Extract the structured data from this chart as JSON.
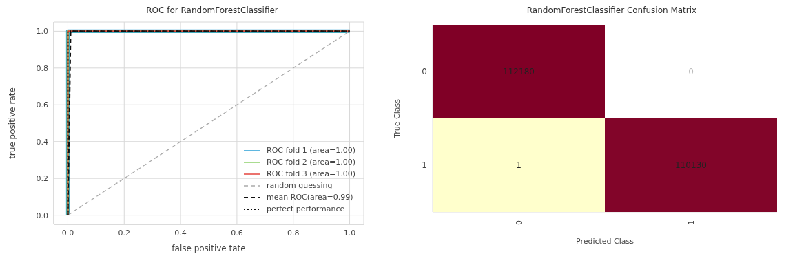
{
  "chart_data": [
    {
      "type": "line",
      "title": "ROC for RandomForestClassifier",
      "xlabel": "false positive tate",
      "ylabel": "true positive rate",
      "xlim": [
        -0.05,
        1.05
      ],
      "ylim": [
        -0.05,
        1.05
      ],
      "xticks": [
        {
          "value": 0,
          "label": "0.0"
        },
        0.2,
        0.4,
        0.6,
        0.8,
        {
          "value": 1,
          "label": "1.0"
        }
      ],
      "yticks": [
        {
          "value": 0,
          "label": "0.0"
        },
        0.2,
        0.4,
        0.6,
        0.8,
        {
          "value": 1,
          "label": "1.0"
        }
      ],
      "grid": true,
      "legend": "bottom right",
      "series": [
        {
          "name": "ROC fold 1 (area=1.00)",
          "color": "#2a9fd6",
          "x": [
            0,
            0,
            1
          ],
          "values": [
            0,
            1,
            1
          ],
          "line_style": "solid"
        },
        {
          "name": "ROC fold 2 (area=1.00)",
          "color": "#8ed06b",
          "x": [
            0,
            0,
            1
          ],
          "values": [
            0,
            1,
            1
          ],
          "line_style": "solid"
        },
        {
          "name": "ROC fold 3 (area=1.00)",
          "color": "#e5453e",
          "x": [
            0,
            0,
            1
          ],
          "values": [
            0,
            1,
            1
          ],
          "line_style": "solid"
        },
        {
          "name": "random guessing",
          "color": "#aaaaaa",
          "x": [
            0,
            1
          ],
          "values": [
            0,
            1
          ],
          "line_style": "dashed"
        },
        {
          "name": "mean ROC(area=0.99)",
          "color": "#111111",
          "x": [
            0,
            0.01,
            1
          ],
          "values": [
            0,
            1,
            1
          ],
          "line_style": "dashed"
        },
        {
          "name": "perfect performance",
          "color": "#111111",
          "x": [
            0,
            0,
            1
          ],
          "values": [
            0,
            1,
            1
          ],
          "line_style": "dotted"
        }
      ]
    },
    {
      "type": "heatmap",
      "title": "RandomForestClassifier Confusion Matrix",
      "xlabel": "Predicted Class",
      "ylabel": "True Class",
      "categories": [
        "0",
        "1"
      ],
      "y_categories": [
        "0",
        "1"
      ],
      "cells": [
        [
          112180,
          0
        ],
        [
          1,
          110130
        ]
      ],
      "data_labels": true
    }
  ]
}
